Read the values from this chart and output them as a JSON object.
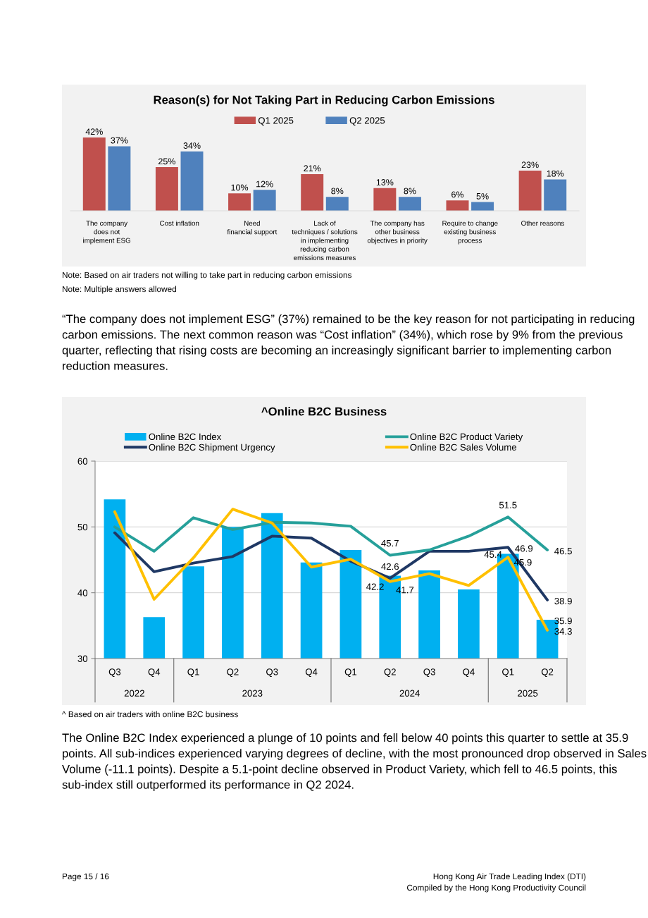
{
  "chart_data": [
    {
      "type": "bar",
      "title": "Reason(s) for Not Taking Part in Reducing Carbon Emissions",
      "categories": [
        "The company\ndoes not\nimplement ESG",
        "Cost inflation",
        "Need\nfinancial support",
        "Lack of\ntechniques / solutions\nin implementing\nreducing carbon\nemissions measures",
        "The company has\nother business\nobjectives in priority",
        "Require to change\nexisting business\nprocess",
        "Other reasons"
      ],
      "series": [
        {
          "name": "Q1 2025",
          "color": "#c0504d",
          "values": [
            42,
            25,
            10,
            21,
            13,
            6,
            23
          ],
          "value_labels": [
            "42%",
            "25%",
            "10%",
            "21%",
            "13%",
            "6%",
            "23%"
          ]
        },
        {
          "name": "Q2 2025",
          "color": "#4f81bd",
          "values": [
            37,
            34,
            12,
            8,
            8,
            5,
            18
          ],
          "value_labels": [
            "37%",
            "34%",
            "12%",
            "8%",
            "8%",
            "5%",
            "18%"
          ]
        }
      ],
      "legend": "top",
      "tick_labels": "x",
      "annotations": [
        "Note: Based on air traders not willing to take part in reducing carbon emissions",
        "Note: Multiple answers allowed",
        "“The company does not implement ESG” (37%) remained to be the key reason for not participating in reducing carbon emissions. The next common reason was “Cost inflation” (34%), which rose by 9% from the previous quarter, reflecting that rising costs are becoming an increasingly significant barrier to implementing carbon reduction measures."
      ]
    },
    {
      "type": "bar",
      "title": "^Online B2C Business",
      "categories": [
        "Q3",
        "Q4",
        "Q1",
        "Q2",
        "Q3",
        "Q4",
        "Q1",
        "Q2",
        "Q3",
        "Q4",
        "Q1",
        "Q2"
      ],
      "series": [
        {
          "name": "Online B2C Index",
          "type": "bar",
          "color": "#00b0f0",
          "values": [
            54.2,
            36.3,
            44.0,
            50.0,
            52.1,
            44.6,
            46.5,
            42.6,
            43.4,
            40.5,
            45.9,
            35.9
          ],
          "value_labels": [
            null,
            null,
            null,
            null,
            null,
            null,
            null,
            "42.6",
            null,
            null,
            "45.9",
            "35.9"
          ]
        },
        {
          "name": "Online B2C Shipment Urgency",
          "type": "line",
          "color": "#1f3864",
          "values": [
            49.1,
            43.2,
            44.5,
            45.5,
            48.6,
            48.3,
            44.8,
            42.2,
            46.3,
            46.3,
            46.9,
            38.9
          ],
          "value_labels": [
            null,
            null,
            null,
            null,
            null,
            null,
            null,
            "42.2",
            null,
            null,
            "46.9",
            "38.9"
          ]
        },
        {
          "name": "Online B2C Product Variety",
          "type": "line",
          "color": "#26a09a",
          "values": [
            50.0,
            46.3,
            51.4,
            49.6,
            50.7,
            50.6,
            50.1,
            45.7,
            46.5,
            48.6,
            51.5,
            46.5
          ],
          "value_labels": [
            null,
            null,
            null,
            null,
            null,
            null,
            null,
            "45.7",
            null,
            null,
            "51.5",
            "46.5"
          ]
        },
        {
          "name": "Online B2C Sales Volume",
          "type": "line",
          "color": "#ffc000",
          "values": [
            52.3,
            39.0,
            45.3,
            52.7,
            50.6,
            43.9,
            45.1,
            41.7,
            42.9,
            41.1,
            45.4,
            34.3
          ],
          "value_labels": [
            null,
            null,
            null,
            null,
            null,
            null,
            null,
            "41.7",
            null,
            null,
            "45.4",
            "34.3"
          ]
        }
      ],
      "ylim": [
        30,
        60
      ],
      "yticks": [
        30,
        40,
        50,
        60
      ],
      "grid": "y",
      "legend": "top",
      "marker": "none",
      "line_style": "solid",
      "annotations": [
        "2022",
        "2023",
        "2024",
        "2025",
        "^ Based on air traders with online B2C business",
        "The Online B2C Index experienced a plunge of 10 points and fell below 40 points this quarter to settle at 35.9 points. All sub-indices experienced varying degrees of decline, with the most pronounced drop observed in Sales Volume (-11.1 points). Despite a 5.1-point decline observed in Product Variety, which fell to 46.5 points, this sub-index still outperformed its performance in Q2 2024.",
        "Page 15 / 16",
        "Hong Kong Air Trade Leading Index (DTI)",
        "Compiled by the Hong Kong Productivity Council"
      ]
    }
  ]
}
